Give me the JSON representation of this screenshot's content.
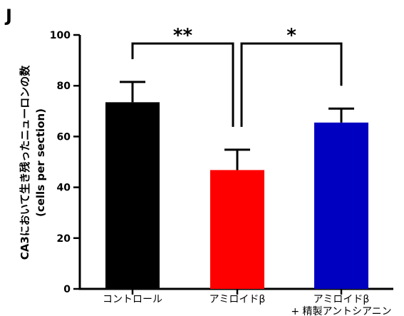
{
  "panel_label": "J",
  "chart_data": {
    "type": "bar",
    "categories": [
      [
        "コントロール"
      ],
      [
        "アミロイドβ"
      ],
      [
        "アミロイドβ",
        "+ 精製アントシアニン"
      ]
    ],
    "values": [
      73.5,
      46.8,
      65.5
    ],
    "errors": [
      8,
      8,
      5.5
    ],
    "colors": [
      "#000000",
      "#ff0000",
      "#0000c0"
    ],
    "ylabel_lines": [
      "CA3において生き残ったニューロンの数",
      "(cells per section)"
    ],
    "ylim": [
      0,
      100
    ],
    "yticks": [
      0,
      20,
      40,
      60,
      80,
      100
    ],
    "significance": [
      {
        "from": 0,
        "to": 1,
        "label": "**"
      },
      {
        "from": 1,
        "to": 2,
        "label": "*"
      }
    ]
  }
}
